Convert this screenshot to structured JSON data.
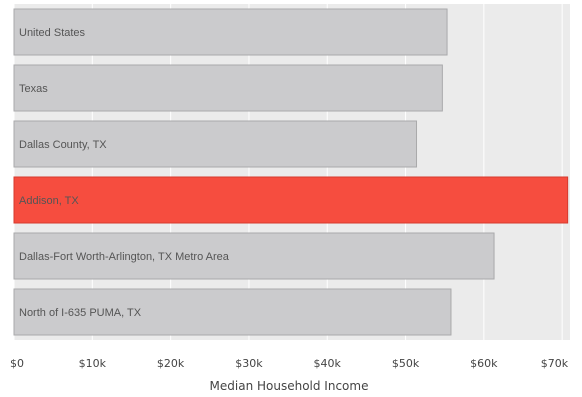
{
  "colors": {
    "background": "#ebebeb",
    "bar": "#cbcbcd",
    "bar_stroke": "#a9a9ab",
    "highlight": "#f64d3f",
    "highlight_stroke": "#d63a2e",
    "gridline": "#ffffff"
  },
  "chart_data": {
    "type": "bar",
    "orientation": "horizontal",
    "categories": [
      "United States",
      "Texas",
      "Dallas County, TX",
      "Addison, TX",
      "Dallas-Fort Worth-Arlington, TX Metro Area",
      "North of I-635 PUMA, TX"
    ],
    "values": [
      55300,
      54700,
      51400,
      70700,
      61300,
      55800
    ],
    "highlight_category": "Addison, TX",
    "xlabel": "Median Household Income",
    "ylabel": "",
    "xlim": [
      0,
      71000
    ],
    "x_ticks": [
      0,
      10000,
      20000,
      30000,
      40000,
      50000,
      60000,
      70000
    ],
    "x_tick_labels": [
      "$0",
      "$10k",
      "$20k",
      "$30k",
      "$40k",
      "$50k",
      "$60k",
      "$70k"
    ],
    "grid": true,
    "legend": "none"
  }
}
